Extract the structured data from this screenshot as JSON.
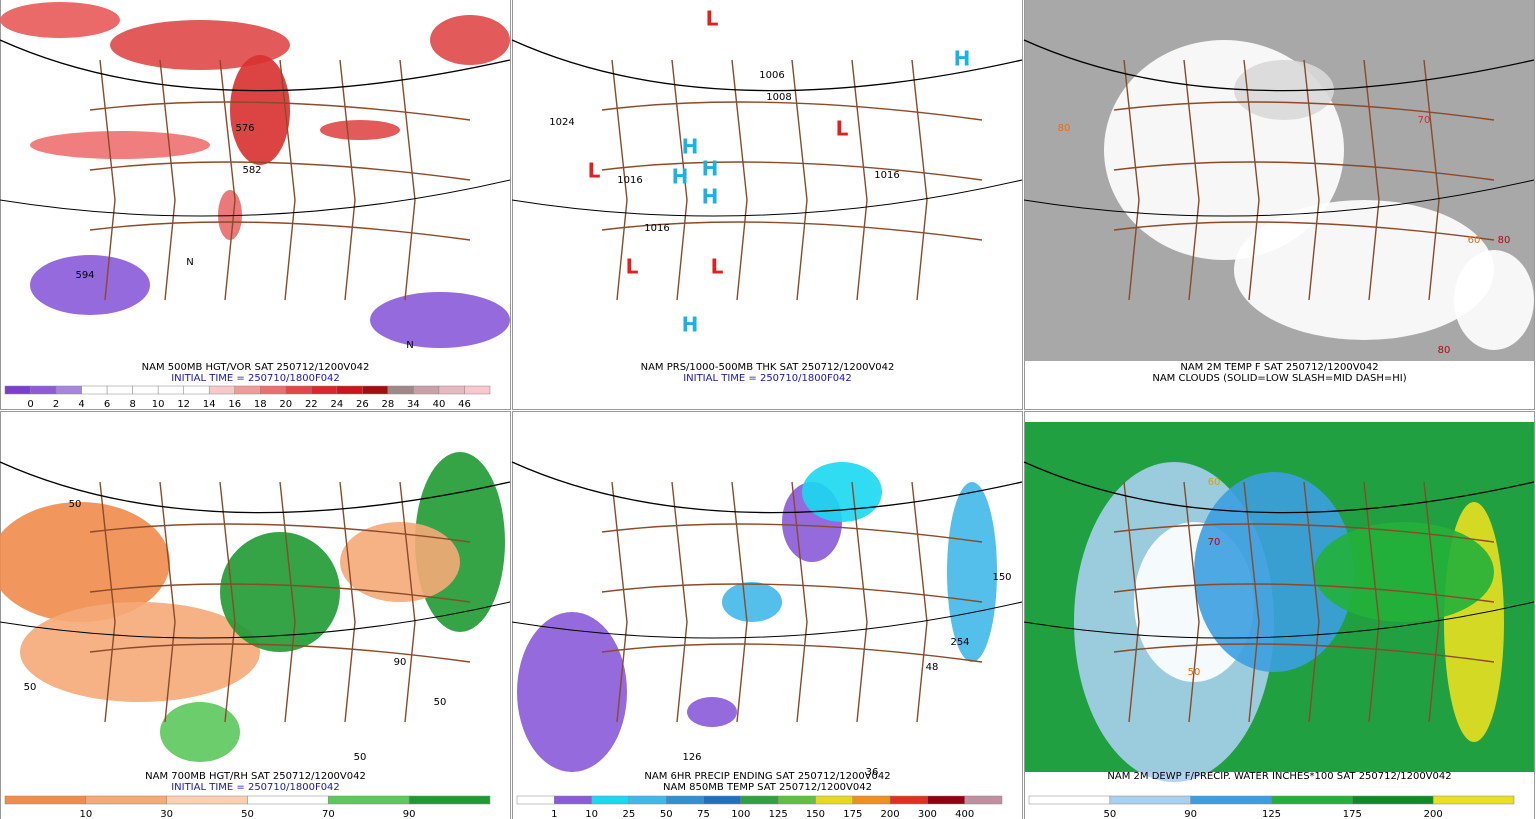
{
  "panels": [
    {
      "caption": [
        "NAM 500MB HGT/VOR SAT 250712/1200V042",
        "INITIAL TIME = 250710/1800F042"
      ],
      "caption_colors": [
        "#000000",
        "#1a1aa8"
      ],
      "colorbar": {
        "labels": [
          "0",
          "2",
          "4",
          "6",
          "8",
          "10",
          "12",
          "14",
          "16",
          "18",
          "20",
          "22",
          "24",
          "26",
          "28",
          "34",
          "40",
          "46"
        ],
        "colors": [
          "#7b3fd0",
          "#8e5ad8",
          "#a585e0",
          "#ffffff",
          "#ffffff",
          "#ffffff",
          "#ffffff",
          "#ffffff",
          "#f7c9c9",
          "#f09a9a",
          "#e87070",
          "#e04848",
          "#d82828",
          "#c81818",
          "#a01010",
          "#a08888",
          "#c8a0a8",
          "#e8b8c0",
          "#f8c8d0"
        ]
      },
      "map_labels": [
        {
          "text": "594",
          "color": "#000000"
        },
        {
          "text": "582",
          "color": "#000000"
        },
        {
          "text": "576",
          "color": "#000000"
        },
        {
          "text": "N",
          "color": "#000000"
        },
        {
          "text": "N",
          "color": "#000000"
        }
      ]
    },
    {
      "caption": [
        "NAM PRS/1000-500MB THK SAT 250712/1200V042",
        "INITIAL TIME = 250710/1800F042"
      ],
      "caption_colors": [
        "#000000",
        "#1a1aa8"
      ],
      "map_labels": [
        {
          "text": "1024",
          "color": "#000000"
        },
        {
          "text": "1016",
          "color": "#000000"
        },
        {
          "text": "1016",
          "color": "#000000"
        },
        {
          "text": "1008",
          "color": "#000000"
        },
        {
          "text": "1006",
          "color": "#000000"
        },
        {
          "text": "1016",
          "color": "#000000"
        },
        {
          "text": "L",
          "color": "#e02020"
        },
        {
          "text": "L",
          "color": "#e02020"
        },
        {
          "text": "L",
          "color": "#e02020"
        },
        {
          "text": "L",
          "color": "#e02020"
        },
        {
          "text": "L",
          "color": "#e02020"
        },
        {
          "text": "H",
          "color": "#20b0e0"
        },
        {
          "text": "H",
          "color": "#20b0e0"
        },
        {
          "text": "H",
          "color": "#20b0e0"
        },
        {
          "text": "H",
          "color": "#20b0e0"
        },
        {
          "text": "H",
          "color": "#20b0e0"
        },
        {
          "text": "H",
          "color": "#20b0e0"
        }
      ]
    },
    {
      "caption": [
        "NAM 2M TEMP F SAT 250712/1200V042",
        "NAM CLOUDS (SOLID=LOW SLASH=MID DASH=HI)"
      ],
      "caption_colors": [
        "#000000",
        "#000000"
      ],
      "map_labels": [
        {
          "text": "80",
          "color": "#e07020"
        },
        {
          "text": "60",
          "color": "#e07020"
        },
        {
          "text": "70",
          "color": "#c83030"
        },
        {
          "text": "80",
          "color": "#a01010"
        },
        {
          "text": "80",
          "color": "#a01010"
        }
      ]
    },
    {
      "caption": [
        "NAM 700MB HGT/RH SAT 250712/1200V042",
        "INITIAL TIME = 250710/1800F042"
      ],
      "caption_colors": [
        "#000000",
        "#1a1aa8"
      ],
      "colorbar": {
        "labels": [
          "10",
          "30",
          "50",
          "70",
          "90"
        ],
        "colors": [
          "#f08c4c",
          "#f5aa78",
          "#fad0b0",
          "#ffffff",
          "#5cc85c",
          "#1e9a32"
        ]
      },
      "map_labels": [
        {
          "text": "50",
          "color": "#000000"
        },
        {
          "text": "50",
          "color": "#000000"
        },
        {
          "text": "50",
          "color": "#000000"
        },
        {
          "text": "50",
          "color": "#000000"
        },
        {
          "text": "90",
          "color": "#000000"
        }
      ]
    },
    {
      "caption": [
        "NAM 6HR PRECIP ENDING SAT 250712/1200V042",
        "NAM 850MB TEMP SAT 250712/1200V042"
      ],
      "caption_colors": [
        "#000000",
        "#000000"
      ],
      "colorbar": {
        "labels": [
          "1",
          "10",
          "25",
          "50",
          "75",
          "100",
          "125",
          "150",
          "175",
          "200",
          "300",
          "400"
        ],
        "colors": [
          "#ffffff",
          "#8a5ad8",
          "#1ad8f0",
          "#40b8e8",
          "#3090d0",
          "#2070c0",
          "#30a040",
          "#60c040",
          "#e8d820",
          "#f09020",
          "#e03020",
          "#900010",
          "#c090a0"
        ]
      },
      "map_labels": [
        {
          "text": "254",
          "color": "#000000"
        },
        {
          "text": "150",
          "color": "#000000"
        },
        {
          "text": "126",
          "color": "#000000"
        },
        {
          "text": "48",
          "color": "#000000"
        },
        {
          "text": "36",
          "color": "#000000"
        }
      ]
    },
    {
      "caption": [
        "NAM 2M DEWP F/PRECIP. WATER INCHES*100 SAT 250712/1200V042"
      ],
      "caption_colors": [
        "#000000"
      ],
      "colorbar": {
        "labels": [
          "50",
          "90",
          "125",
          "175",
          "200"
        ],
        "colors": [
          "#ffffff",
          "#a8d0f0",
          "#3c9ee0",
          "#22b03a",
          "#0e8a26",
          "#e8e020"
        ]
      },
      "map_labels": [
        {
          "text": "50",
          "color": "#e07020"
        },
        {
          "text": "60",
          "color": "#d0a020"
        },
        {
          "text": "70",
          "color": "#a01010"
        }
      ]
    }
  ]
}
